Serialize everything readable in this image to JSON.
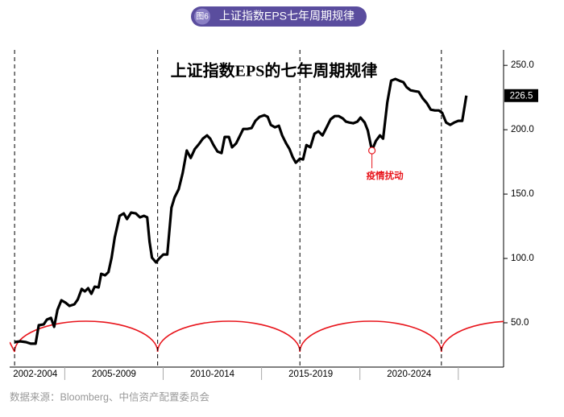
{
  "header": {
    "badge": "图6",
    "title": "上证指数EPS七年周期规律"
  },
  "source": "数据来源：Bloomberg、中信资产配置委员会",
  "chart_data": {
    "type": "line",
    "title": "上证指数EPS的七年周期规律",
    "xlim": [
      2002.2,
      2027.3
    ],
    "ylim": [
      15.6,
      262
    ],
    "yticks": [
      {
        "value": 50,
        "label": "50.0"
      },
      {
        "value": 100,
        "label": "100.0"
      },
      {
        "value": 150,
        "label": "150.0"
      },
      {
        "value": 200,
        "label": "200.0"
      },
      {
        "value": 250,
        "label": "250.0"
      }
    ],
    "xticks": [
      {
        "value": 2003.5,
        "label": "2002-2004"
      },
      {
        "value": 2007.5,
        "label": "2005-2009"
      },
      {
        "value": 2012.5,
        "label": "2010-2014"
      },
      {
        "value": 2017.5,
        "label": "2015-2019"
      },
      {
        "value": 2022.5,
        "label": "2020-2024"
      }
    ],
    "period_edges": [
      2005,
      2010,
      2015,
      2020,
      2025
    ],
    "cycle_lines": [
      2002.45,
      2009.72,
      2016.95,
      2024.14
    ],
    "cycle_arc_color": "#e8141b",
    "series": [
      {
        "color": "#000000",
        "x": [
          2002.45,
          2002.74,
          2003.03,
          2003.27,
          2003.52,
          2003.68,
          2003.93,
          2004.09,
          2004.3,
          2004.46,
          2004.63,
          2004.83,
          2005.04,
          2005.24,
          2005.49,
          2005.66,
          2005.86,
          2006.02,
          2006.19,
          2006.35,
          2006.52,
          2006.72,
          2006.85,
          2007.05,
          2007.22,
          2007.38,
          2007.54,
          2007.79,
          2008.0,
          2008.16,
          2008.37,
          2008.61,
          2008.82,
          2009.02,
          2009.19,
          2009.31,
          2009.43,
          2009.64,
          2009.8,
          2010.01,
          2010.21,
          2010.42,
          2010.58,
          2010.79,
          2010.99,
          2011.2,
          2011.4,
          2011.61,
          2011.82,
          2012.02,
          2012.23,
          2012.39,
          2012.56,
          2012.76,
          2012.97,
          2013.13,
          2013.34,
          2013.5,
          2013.71,
          2013.91,
          2014.07,
          2014.28,
          2014.49,
          2014.69,
          2014.9,
          2015.14,
          2015.31,
          2015.47,
          2015.68,
          2015.88,
          2016.05,
          2016.25,
          2016.42,
          2016.58,
          2016.74,
          2016.95,
          2017.11,
          2017.28,
          2017.48,
          2017.69,
          2017.89,
          2018.1,
          2018.31,
          2018.51,
          2018.72,
          2018.92,
          2019.13,
          2019.29,
          2019.46,
          2019.66,
          2019.87,
          2020.03,
          2020.24,
          2020.4,
          2020.61,
          2020.81,
          2021.02,
          2021.18,
          2021.39,
          2021.59,
          2021.8,
          2022.0,
          2022.21,
          2022.37,
          2022.58,
          2022.78,
          2022.99,
          2023.19,
          2023.4,
          2023.6,
          2023.81,
          2024.01,
          2024.18,
          2024.38,
          2024.59,
          2024.79,
          2025.0,
          2025.2,
          2025.41
        ],
        "values": [
          35.0,
          35.6,
          35.0,
          33.8,
          33.8,
          48.1,
          48.8,
          52.5,
          53.8,
          46.9,
          60.0,
          67.5,
          65.6,
          63.1,
          64.4,
          68.1,
          76.3,
          74.4,
          76.9,
          72.5,
          78.1,
          77.5,
          88.1,
          86.9,
          89.4,
          100.6,
          116.3,
          133.1,
          135.0,
          130.6,
          135.6,
          135.0,
          131.9,
          133.1,
          131.9,
          113.1,
          100.6,
          96.9,
          100.0,
          103.1,
          103.1,
          139.4,
          147.5,
          153.8,
          166.3,
          183.8,
          178.1,
          185.0,
          188.8,
          193.1,
          195.6,
          193.1,
          188.1,
          183.1,
          181.9,
          194.4,
          194.4,
          186.3,
          189.4,
          195.6,
          200.6,
          200.6,
          201.3,
          206.9,
          210.0,
          211.3,
          210.0,
          203.8,
          201.9,
          203.1,
          195.6,
          189.4,
          185.0,
          178.8,
          174.4,
          177.5,
          176.9,
          188.1,
          186.3,
          196.9,
          198.8,
          195.6,
          201.9,
          208.1,
          210.6,
          210.6,
          208.8,
          206.3,
          205.6,
          205.0,
          206.3,
          209.4,
          205.6,
          199.4,
          183.8,
          191.3,
          195.6,
          193.1,
          221.3,
          238.1,
          239.4,
          238.1,
          236.9,
          233.1,
          230.6,
          230.0,
          229.4,
          224.4,
          220.6,
          215.6,
          215.0,
          215.0,
          213.1,
          205.6,
          203.8,
          205.6,
          206.9,
          206.9,
          226.5
        ]
      }
    ],
    "annotations": [
      {
        "text": "疫情扰动",
        "x": 2020.61,
        "y": 183.8,
        "color": "#e8141b"
      }
    ]
  }
}
